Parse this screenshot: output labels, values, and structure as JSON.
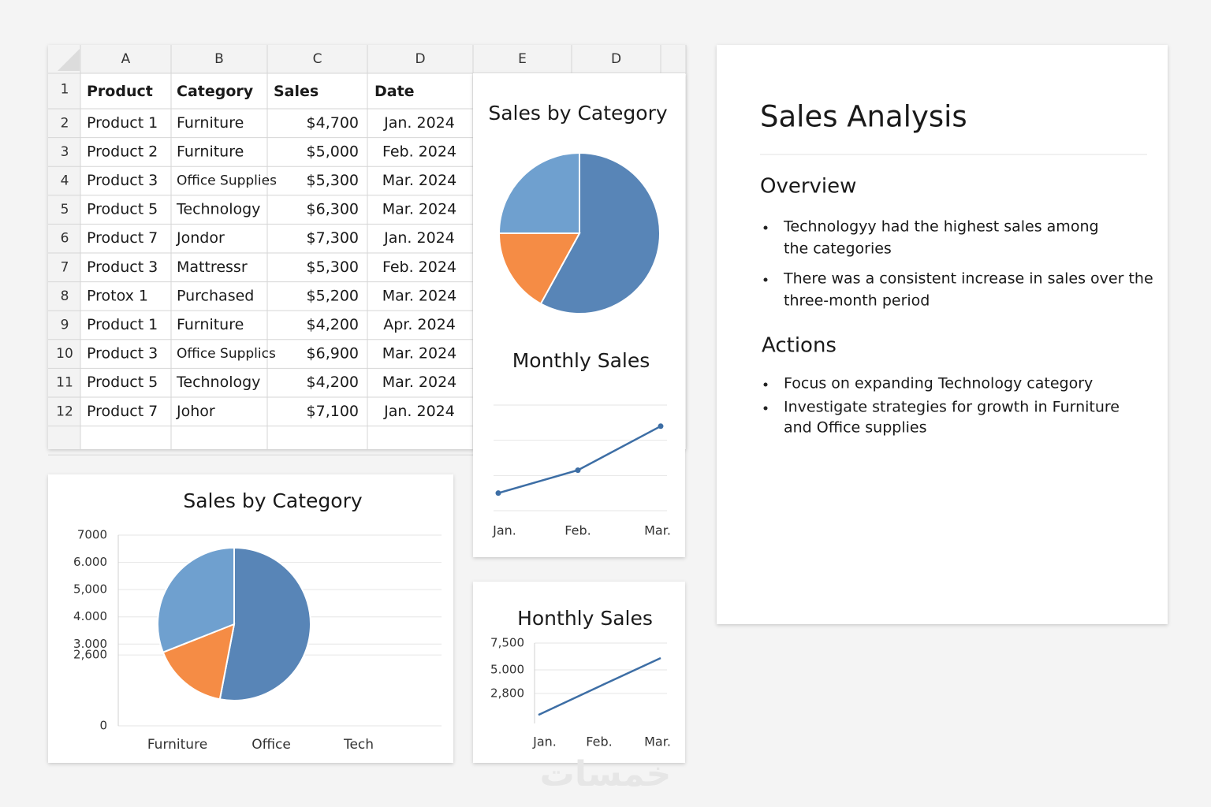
{
  "spreadsheet": {
    "columns": [
      "A",
      "B",
      "C",
      "D",
      "E",
      "D"
    ],
    "header": [
      "Product",
      "Category",
      "Sales",
      "Date"
    ],
    "row_numbers": [
      1,
      2,
      3,
      4,
      5,
      6,
      7,
      8,
      9,
      10,
      11,
      12
    ],
    "rows": [
      [
        "Product 1",
        "Furniture",
        "$4,700",
        "Jan. 2024"
      ],
      [
        "Product 2",
        "Furniture",
        "$5,000",
        "Feb. 2024"
      ],
      [
        "Product 3",
        "Office Supplies",
        "$5,300",
        "Mar. 2024"
      ],
      [
        "Product 5",
        "Technology",
        "$6,300",
        "Mar. 2024"
      ],
      [
        "Product 7",
        "Jondor",
        "$7,300",
        "Jan. 2024"
      ],
      [
        "Product 3",
        "Mattressr",
        "$5,300",
        "Feb. 2024"
      ],
      [
        "Protox 1",
        "Purchased",
        "$5,200",
        "Mar. 2024"
      ],
      [
        "Product 1",
        "Furniture",
        "$4,200",
        "Apr. 2024"
      ],
      [
        "Product 3",
        "Office Supplics",
        "$6,900",
        "Mar. 2024"
      ],
      [
        "Product 5",
        "Technology",
        "$4,200",
        "Mar. 2024"
      ],
      [
        "Product 7",
        "Johor",
        "$7,100",
        "Jan. 2024"
      ]
    ]
  },
  "chart_data": [
    {
      "type": "pie",
      "title": "Sales by Category",
      "values": [
        58,
        17,
        25
      ],
      "colors": [
        "#5885b7",
        "#f58c45",
        "#6fa0cf"
      ]
    },
    {
      "type": "line",
      "title": "Monthly Sales",
      "categories": [
        "Jan.",
        "Feb.",
        "Mar."
      ],
      "values": [
        0.5,
        1.15,
        2.4
      ],
      "color": "#3d6ea5",
      "ylim": [
        0,
        3
      ],
      "gridlines": [
        0,
        1,
        2,
        3
      ],
      "grid": true,
      "markers": true
    },
    {
      "type": "pie",
      "title": "Sales by Category",
      "values": [
        53,
        16,
        31
      ],
      "colors": [
        "#5885b7",
        "#f58c45",
        "#6fa0cf"
      ],
      "categories": [
        "Furniture",
        "Office",
        "Tech"
      ],
      "ylim": [
        0,
        7000
      ],
      "yticks": [
        7000,
        {
          "value": 6000,
          "label": "6.000"
        },
        {
          "value": 5000,
          "label": "5,000"
        },
        {
          "value": 4000,
          "label": "4.000"
        },
        {
          "value": 3000,
          "label": "3.000"
        },
        {
          "value": 2600,
          "label": "2,600"
        },
        0
      ],
      "grid": true
    },
    {
      "type": "line",
      "title": "Honthly Sales",
      "categories": [
        "Jan.",
        "Feb.",
        "Mar."
      ],
      "values": [
        800,
        3450,
        6100
      ],
      "color": "#3d6ea5",
      "ylim": [
        0,
        7500
      ],
      "yticks": [
        {
          "value": 7500,
          "label": "7,500"
        },
        {
          "value": 5000,
          "label": "5.000"
        },
        {
          "value": 2800,
          "label": "2,800"
        }
      ],
      "grid": true,
      "markers": false
    }
  ],
  "report": {
    "title": "Sales Analysis",
    "sections": [
      {
        "heading": "Overview",
        "bullets": [
          [
            "Technologyy had the highest sales among",
            "the categories"
          ],
          [
            "There was a consistent increase in sales over the",
            "three-month period"
          ]
        ]
      },
      {
        "heading": "Actions",
        "bullets": [
          [
            "Focus on expanding Technology  category"
          ],
          [
            "Investigate strategies for growth in Furniture",
            "and Office supplies"
          ]
        ]
      }
    ]
  },
  "watermark": "خمسات"
}
